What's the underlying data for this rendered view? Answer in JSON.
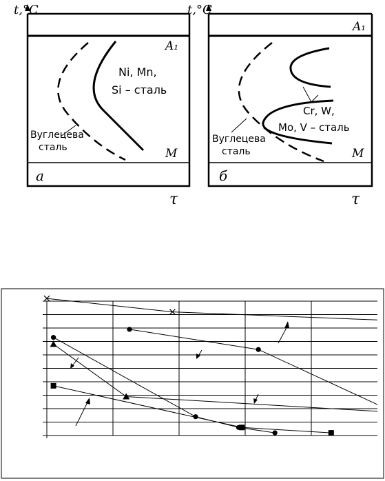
{
  "panel_a": {
    "y_axis_label": "t,°C",
    "x_axis_label": "τ",
    "upper_line_label": "A₁",
    "lower_line_label": "M",
    "panel_letter": "а",
    "curve_label_line1": "Ni, Mn,",
    "curve_label_line2": "Si – сталь",
    "carbon_label_line1": "Вуглецева",
    "carbon_label_line2": "сталь"
  },
  "panel_b": {
    "y_axis_label": "t,°C",
    "x_axis_label": "τ",
    "upper_line_label": "A₁",
    "lower_line_label": "M",
    "panel_letter": "б",
    "curve_label_line1": "Cr, W,",
    "curve_label_line2": "Mo, V – сталь",
    "carbon_label_line1": "Вуглецева",
    "carbon_label_line2": "сталь"
  },
  "colors": {
    "ink": "#000000",
    "paper": "#ffffff"
  },
  "chart_data": {
    "type": "line",
    "title": "",
    "xlabel": "",
    "ylabel": "",
    "grid": true,
    "legend": "none",
    "x_categories": 5,
    "y_gridlines": 11,
    "series": [
      {
        "marker": "x",
        "points": [
          [
            0,
            10.2
          ],
          [
            1.9,
            9.2
          ],
          [
            5.0,
            8.6
          ]
        ]
      },
      {
        "marker": "diamond",
        "points": [
          [
            1.25,
            7.9
          ],
          [
            3.2,
            6.4
          ],
          [
            5.0,
            2.3
          ]
        ]
      },
      {
        "marker": "diamond",
        "points": [
          [
            0.1,
            7.3
          ],
          [
            2.25,
            1.4
          ],
          [
            2.9,
            0.6
          ],
          [
            3.45,
            0.2
          ]
        ]
      },
      {
        "marker": "triangle",
        "points": [
          [
            0.1,
            6.8
          ],
          [
            1.2,
            2.9
          ],
          [
            5.0,
            1.8
          ]
        ]
      },
      {
        "marker": "square",
        "points": [
          [
            0.1,
            3.7
          ],
          [
            2.95,
            0.6
          ],
          [
            4.3,
            0.2
          ]
        ]
      }
    ]
  }
}
